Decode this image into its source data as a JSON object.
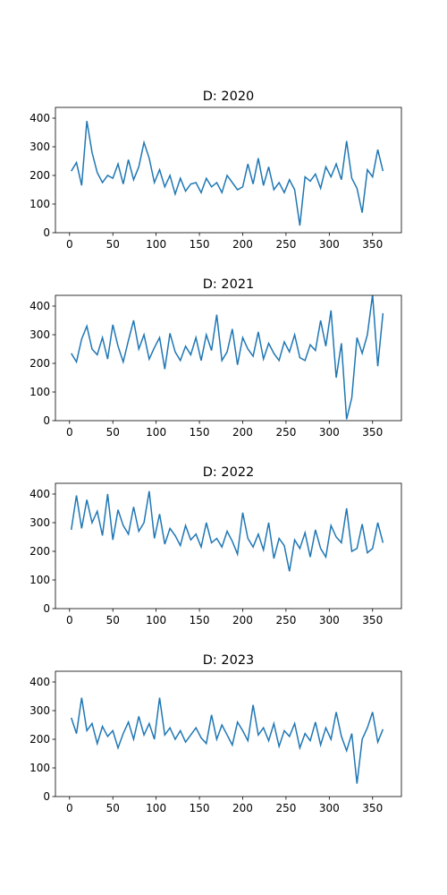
{
  "chart_data": [
    {
      "type": "line",
      "title": "D: 2020",
      "color": "#1f77b4",
      "x": [
        2,
        8,
        14,
        20,
        26,
        32,
        38,
        44,
        50,
        56,
        62,
        68,
        74,
        80,
        86,
        92,
        98,
        104,
        110,
        116,
        122,
        128,
        134,
        140,
        146,
        152,
        158,
        164,
        170,
        176,
        182,
        188,
        194,
        200,
        206,
        212,
        218,
        224,
        230,
        236,
        242,
        248,
        254,
        260,
        266,
        272,
        278,
        284,
        290,
        296,
        302,
        308,
        314,
        320,
        326,
        332,
        338,
        344,
        350,
        356,
        362
      ],
      "values": [
        215,
        245,
        165,
        390,
        280,
        210,
        175,
        200,
        190,
        240,
        170,
        255,
        185,
        230,
        315,
        260,
        175,
        220,
        160,
        200,
        135,
        190,
        145,
        170,
        175,
        140,
        190,
        160,
        175,
        140,
        200,
        175,
        150,
        160,
        240,
        170,
        260,
        165,
        230,
        150,
        175,
        140,
        185,
        150,
        25,
        195,
        180,
        205,
        155,
        230,
        195,
        240,
        185,
        320,
        190,
        155,
        70,
        220,
        195,
        290,
        215
      ],
      "xlim": [
        -16.3,
        383.3
      ],
      "ylim": [
        0,
        437.5
      ],
      "xticks": [
        0,
        50,
        100,
        150,
        200,
        250,
        300,
        350
      ],
      "yticks": [
        0,
        100,
        200,
        300,
        400
      ]
    },
    {
      "type": "line",
      "title": "D: 2021",
      "color": "#1f77b4",
      "x": [
        2,
        8,
        14,
        20,
        26,
        32,
        38,
        44,
        50,
        56,
        62,
        68,
        74,
        80,
        86,
        92,
        98,
        104,
        110,
        116,
        122,
        128,
        134,
        140,
        146,
        152,
        158,
        164,
        170,
        176,
        182,
        188,
        194,
        200,
        206,
        212,
        218,
        224,
        230,
        236,
        242,
        248,
        254,
        260,
        266,
        272,
        278,
        284,
        290,
        296,
        302,
        308,
        314,
        320,
        326,
        332,
        338,
        344,
        350,
        356,
        362
      ],
      "values": [
        235,
        205,
        285,
        330,
        250,
        230,
        290,
        215,
        335,
        260,
        205,
        280,
        350,
        250,
        300,
        215,
        255,
        290,
        180,
        305,
        240,
        210,
        260,
        230,
        290,
        210,
        300,
        245,
        370,
        210,
        240,
        320,
        195,
        290,
        250,
        225,
        310,
        215,
        270,
        235,
        210,
        275,
        240,
        300,
        220,
        210,
        265,
        245,
        350,
        260,
        385,
        150,
        270,
        5,
        80,
        290,
        235,
        300,
        440,
        190,
        375
      ],
      "xlim": [
        -16.3,
        383.3
      ],
      "ylim": [
        0,
        437.5
      ],
      "xticks": [
        0,
        50,
        100,
        150,
        200,
        250,
        300,
        350
      ],
      "yticks": [
        0,
        100,
        200,
        300,
        400
      ]
    },
    {
      "type": "line",
      "title": "D: 2022",
      "color": "#1f77b4",
      "x": [
        2,
        8,
        14,
        20,
        26,
        32,
        38,
        44,
        50,
        56,
        62,
        68,
        74,
        80,
        86,
        92,
        98,
        104,
        110,
        116,
        122,
        128,
        134,
        140,
        146,
        152,
        158,
        164,
        170,
        176,
        182,
        188,
        194,
        200,
        206,
        212,
        218,
        224,
        230,
        236,
        242,
        248,
        254,
        260,
        266,
        272,
        278,
        284,
        290,
        296,
        302,
        308,
        314,
        320,
        326,
        332,
        338,
        344,
        350,
        356,
        362
      ],
      "values": [
        275,
        395,
        280,
        380,
        300,
        340,
        255,
        400,
        240,
        345,
        290,
        260,
        355,
        270,
        300,
        410,
        245,
        330,
        225,
        280,
        255,
        220,
        290,
        240,
        260,
        215,
        300,
        230,
        245,
        215,
        270,
        235,
        190,
        335,
        245,
        215,
        260,
        205,
        300,
        175,
        245,
        220,
        130,
        240,
        210,
        265,
        180,
        275,
        210,
        180,
        290,
        250,
        230,
        350,
        200,
        210,
        295,
        195,
        210,
        300,
        230
      ],
      "xlim": [
        -16.3,
        383.3
      ],
      "ylim": [
        0,
        437.5
      ],
      "xticks": [
        0,
        50,
        100,
        150,
        200,
        250,
        300,
        350
      ],
      "yticks": [
        0,
        100,
        200,
        300,
        400
      ]
    },
    {
      "type": "line",
      "title": "D: 2023",
      "color": "#1f77b4",
      "x": [
        2,
        8,
        14,
        20,
        26,
        32,
        38,
        44,
        50,
        56,
        62,
        68,
        74,
        80,
        86,
        92,
        98,
        104,
        110,
        116,
        122,
        128,
        134,
        140,
        146,
        152,
        158,
        164,
        170,
        176,
        182,
        188,
        194,
        200,
        206,
        212,
        218,
        224,
        230,
        236,
        242,
        248,
        254,
        260,
        266,
        272,
        278,
        284,
        290,
        296,
        302,
        308,
        314,
        320,
        326,
        332,
        338,
        344,
        350,
        356,
        362
      ],
      "values": [
        275,
        220,
        345,
        230,
        255,
        185,
        245,
        210,
        230,
        170,
        220,
        260,
        200,
        280,
        215,
        255,
        200,
        345,
        215,
        240,
        200,
        230,
        190,
        215,
        240,
        205,
        185,
        285,
        200,
        250,
        215,
        180,
        260,
        230,
        195,
        320,
        215,
        240,
        195,
        255,
        175,
        230,
        210,
        255,
        170,
        220,
        195,
        260,
        180,
        240,
        200,
        295,
        210,
        160,
        220,
        45,
        200,
        240,
        295,
        190,
        235
      ],
      "xlim": [
        -16.3,
        383.3
      ],
      "ylim": [
        0,
        437.5
      ],
      "xticks": [
        0,
        50,
        100,
        150,
        200,
        250,
        300,
        350
      ],
      "yticks": [
        0,
        100,
        200,
        300,
        400
      ]
    }
  ]
}
